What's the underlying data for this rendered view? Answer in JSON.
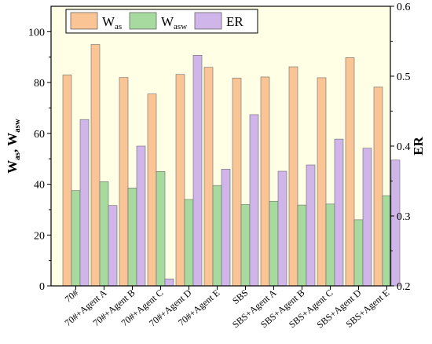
{
  "chart_data": {
    "type": "bar",
    "categories": [
      "70#",
      "70#+Agent A",
      "70#+Agent B",
      "70#+Agent C",
      "70#+Agent D",
      "70#+Agent E",
      "SBS",
      "SBS+Agent A",
      "SBS+Agent B",
      "SBS+Agent C",
      "SBS+Agent D",
      "SBS+Agent E"
    ],
    "series": [
      {
        "name": "Was",
        "axis": "left",
        "color": "#FBC495",
        "values": [
          83,
          95,
          82,
          75.5,
          83.2,
          86,
          81.8,
          82.2,
          86.2,
          81.9,
          89.8,
          78.2
        ]
      },
      {
        "name": "Wasw",
        "axis": "left",
        "color": "#A6DA9F",
        "values": [
          37.5,
          41,
          38.5,
          45,
          34,
          39.5,
          32,
          33.3,
          31.8,
          32.2,
          26,
          35.5
        ]
      },
      {
        "name": "ER",
        "axis": "right",
        "color": "#CFB5EA",
        "values": [
          0.438,
          0.315,
          0.4,
          0.21,
          0.53,
          0.367,
          0.445,
          0.364,
          0.373,
          0.41,
          0.397,
          0.38
        ]
      }
    ],
    "ylabel_left": "Was, Wasw",
    "ylabel_right": "ER",
    "ylim_left": [
      0,
      110
    ],
    "yticks_left": [
      "0",
      "20",
      "40",
      "60",
      "80",
      "100"
    ],
    "ylim_right": [
      0.2,
      0.6
    ],
    "yticks_right": [
      "0.2",
      "0.3",
      "0.4",
      "0.5",
      "0.6"
    ],
    "legend": {
      "position": "top-left",
      "entries": [
        "Was",
        "Wasw",
        "ER"
      ]
    },
    "background": "#FFFFE6",
    "grid": false
  }
}
